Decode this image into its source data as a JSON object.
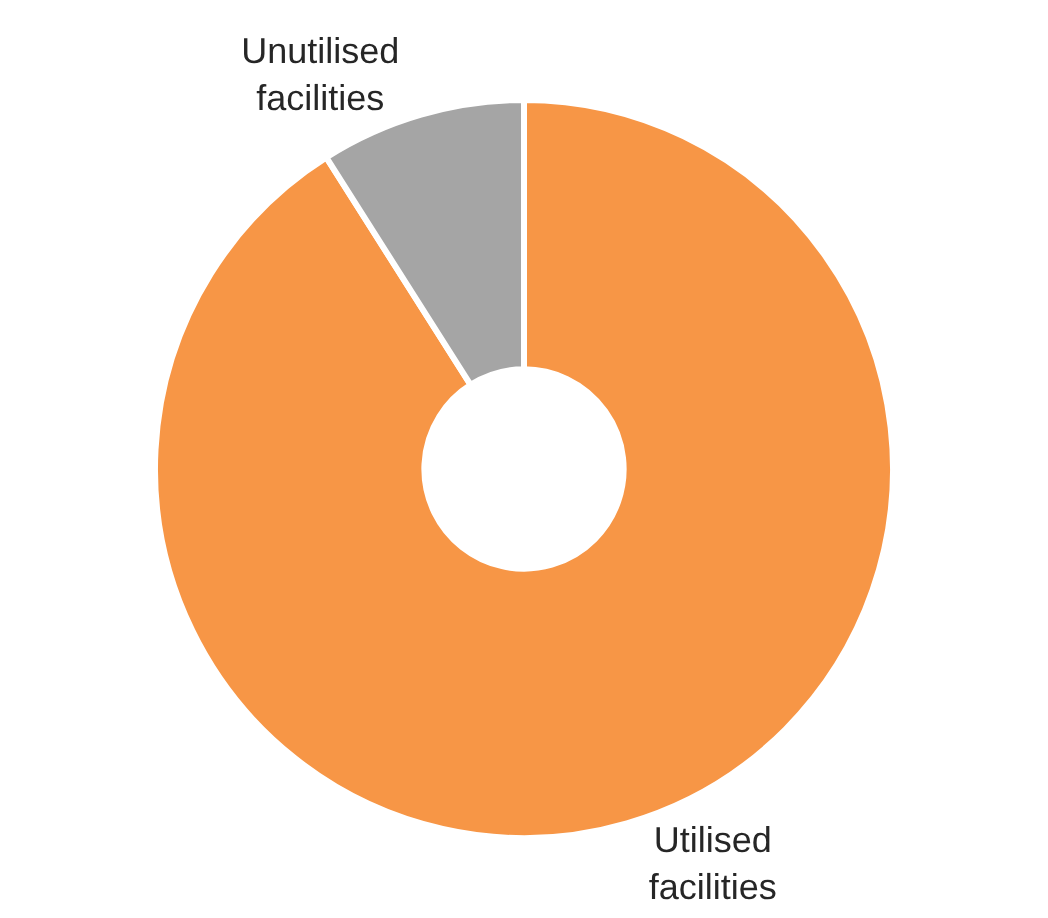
{
  "chart_data": {
    "type": "donut",
    "categories": [
      "Utilised facilities",
      "Unutilised facilities"
    ],
    "values": [
      91,
      9
    ],
    "colors": [
      "#f79646",
      "#a5a5a5"
    ],
    "legend": false
  }
}
